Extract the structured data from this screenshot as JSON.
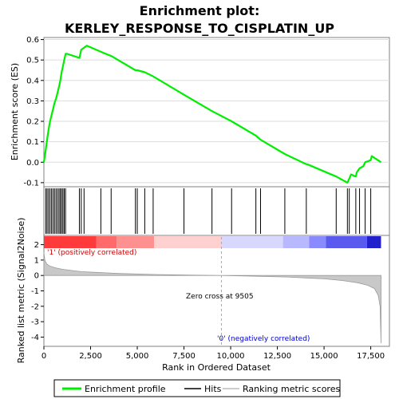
{
  "chart_data": {
    "type": "line",
    "title": [
      "Enrichment plot:",
      "KERLEY_RESPONSE_TO_CISPLATIN_UP"
    ],
    "top_panel": {
      "ylabel": "Enrichment score (ES)",
      "ylim": [
        -0.12,
        0.61
      ],
      "yticks": [
        -0.1,
        0.0,
        0.1,
        0.2,
        0.3,
        0.4,
        0.5,
        0.6
      ],
      "ytick_labels": [
        "-0.1",
        "0.0",
        "0.1",
        "0.2",
        "0.3",
        "0.4",
        "0.5",
        "0.6"
      ],
      "series": [
        {
          "name": "Enrichment profile",
          "color": "#00ee00",
          "x": [
            0,
            100,
            170,
            250,
            330,
            410,
            490,
            570,
            650,
            730,
            810,
            880,
            950,
            1020,
            1090,
            1160,
            1250,
            1900,
            2000,
            2150,
            2300,
            3050,
            3600,
            4900,
            5000,
            5400,
            5850,
            7500,
            9000,
            10050,
            11350,
            11600,
            12900,
            14050,
            14100,
            15650,
            16250,
            16350,
            16450,
            16700,
            16750,
            16900,
            17100,
            17200,
            17500,
            17550,
            18050
          ],
          "y": [
            0.0,
            0.06,
            0.11,
            0.16,
            0.2,
            0.23,
            0.26,
            0.29,
            0.31,
            0.34,
            0.37,
            0.4,
            0.44,
            0.47,
            0.5,
            0.53,
            0.53,
            0.51,
            0.55,
            0.56,
            0.57,
            0.54,
            0.52,
            0.45,
            0.45,
            0.44,
            0.42,
            0.33,
            0.25,
            0.2,
            0.13,
            0.11,
            0.04,
            -0.01,
            -0.01,
            -0.07,
            -0.1,
            -0.08,
            -0.06,
            -0.07,
            -0.05,
            -0.03,
            -0.02,
            0.0,
            0.01,
            0.03,
            0.0
          ]
        }
      ]
    },
    "hits": {
      "name": "Hits",
      "x": [
        100,
        170,
        250,
        330,
        410,
        490,
        570,
        650,
        730,
        810,
        880,
        950,
        1020,
        1090,
        1160,
        1900,
        2000,
        2150,
        3050,
        3600,
        4900,
        5000,
        5400,
        5850,
        7500,
        9000,
        10050,
        11350,
        11600,
        12900,
        14050,
        15650,
        16250,
        16350,
        16700,
        16900,
        17200,
        17500
      ]
    },
    "bottom_panel": {
      "ylabel": "Ranked list metric (Signal2Noise)",
      "ylim": [
        -4.6,
        2.6
      ],
      "yticks": [
        -4,
        -3,
        -2,
        -1,
        0,
        1,
        2
      ],
      "ytick_labels": [
        "-4",
        "-3",
        "-2",
        "-1",
        "0",
        "1",
        "2"
      ],
      "metric_x": [
        0,
        50,
        150,
        300,
        600,
        1000,
        2000,
        4000,
        6000,
        8000,
        9505,
        11000,
        13000,
        15000,
        16000,
        16800,
        17300,
        17700,
        17900,
        18000,
        18050
      ],
      "metric_y": [
        1.5,
        1.0,
        0.75,
        0.62,
        0.5,
        0.4,
        0.25,
        0.13,
        0.06,
        0.02,
        0.0,
        -0.04,
        -0.1,
        -0.22,
        -0.33,
        -0.47,
        -0.62,
        -0.85,
        -1.3,
        -2.0,
        -4.4
      ],
      "pos_label": "'1' (positively correlated)",
      "neg_label": "'0' (negatively correlated)",
      "zero_cross_label": "Zero cross at 9505",
      "zero_cross": 9505
    },
    "xaxis": {
      "xlabel": "Rank in Ordered Dataset",
      "xlim": [
        0,
        18500
      ],
      "xticks": [
        0,
        2500,
        5000,
        7500,
        10000,
        12500,
        15000,
        17500
      ],
      "xtick_labels": [
        "0",
        "2,500",
        "5,000",
        "7,500",
        "10,000",
        "12,500",
        "15,000",
        "17,500"
      ],
      "n_genes": 18050
    },
    "legend": [
      {
        "label": "Enrichment profile",
        "color": "#00ee00"
      },
      {
        "label": "Hits",
        "color": "#000000"
      },
      {
        "label": "Ranking metric scores",
        "color": "#bbbbbb"
      }
    ]
  }
}
